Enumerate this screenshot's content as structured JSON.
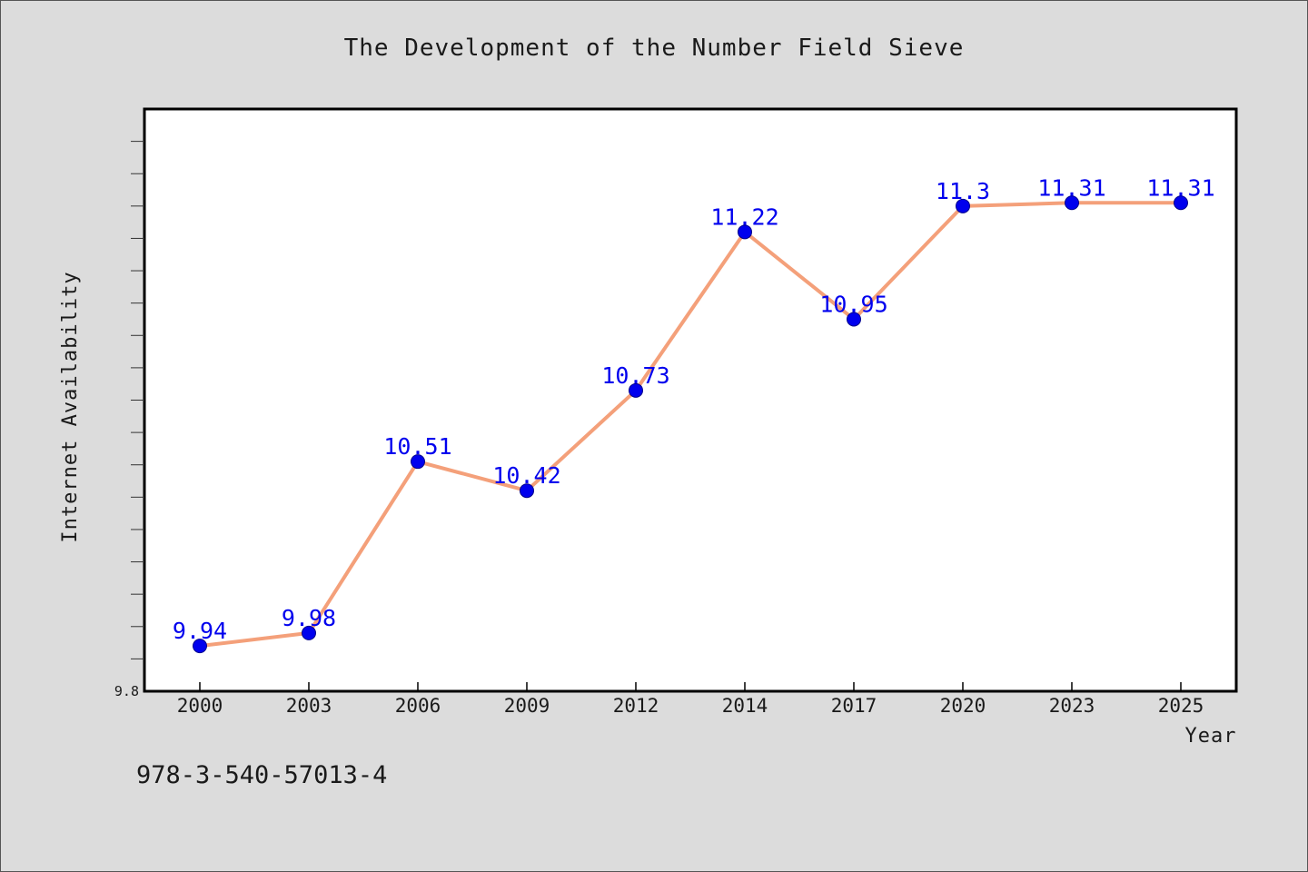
{
  "chart_data": {
    "type": "line",
    "title": "The Development of the Number Field Sieve",
    "xlabel": "Year",
    "ylabel": "Internet Availability",
    "categories": [
      "2000",
      "2003",
      "2006",
      "2009",
      "2012",
      "2014",
      "2017",
      "2020",
      "2023",
      "2025"
    ],
    "series": [
      {
        "values": [
          9.94,
          9.98,
          10.51,
          10.42,
          10.73,
          11.22,
          10.95,
          11.3,
          11.31,
          11.31
        ],
        "data_labels": [
          "9.94",
          "9.98",
          "10.51",
          "10.42",
          "10.73",
          "11.22",
          "10.95",
          "11.3",
          "11.31",
          "11.31"
        ],
        "line_color": "#f4a07a",
        "marker_color": "#0000ee",
        "label_color": "#0000ee"
      }
    ],
    "ylim": [
      9.8,
      11.6
    ],
    "y_tick_labels": [
      "9.8"
    ],
    "grid": false,
    "legend": "none"
  },
  "footnote": "978-3-540-57013-4",
  "colors": {
    "background": "#dcdcdc",
    "plot_background": "#ffffff"
  }
}
